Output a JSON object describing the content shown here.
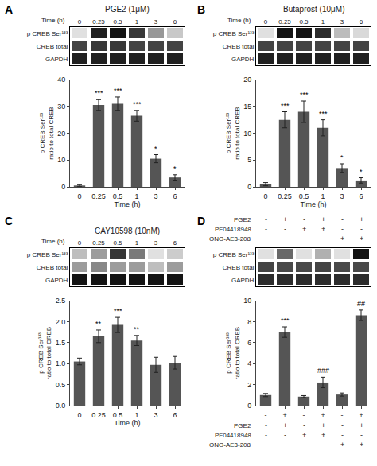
{
  "chart_data": [
    {
      "type": "heatmap",
      "label": "A",
      "title": "PGE2 (1μM)",
      "xlabel": "Time (h)",
      "categories": [
        "0",
        "0.25",
        "0.5",
        "1",
        "3",
        "6"
      ],
      "rows": [
        "p CREB Ser¹³³",
        "CREB total",
        "GAPDH"
      ],
      "cells": [
        [
          0.05,
          0.85,
          0.9,
          0.75,
          0.35,
          0.15
        ],
        [
          0.7,
          0.75,
          0.75,
          0.7,
          0.7,
          0.7
        ],
        [
          0.85,
          0.85,
          0.85,
          0.85,
          0.85,
          0.85
        ]
      ],
      "color": "#e0e0e0"
    },
    {
      "type": "bar",
      "categories": [
        "0",
        "0.25",
        "0.5",
        "1",
        "3",
        "6"
      ],
      "values": [
        0.5,
        30.5,
        31.0,
        26.5,
        10.5,
        3.5
      ],
      "errors": [
        0.3,
        2.0,
        2.5,
        2.0,
        1.5,
        1.0
      ],
      "annotations": [
        null,
        "***",
        "***",
        "***",
        "*",
        "*"
      ],
      "ylim": [
        0,
        40
      ],
      "yticks": [
        0,
        10,
        20,
        30,
        40
      ],
      "ylabel": "p CREB Ser¹³³\nratio to total CREB",
      "xlabel": "Time (h)",
      "color": "#555555",
      "grid": false
    },
    {
      "type": "heatmap",
      "label": "B",
      "title": "Butaprost (10μM)",
      "xlabel": "Time (h)",
      "categories": [
        "0",
        "0.25",
        "0.5",
        "1",
        "3",
        "6"
      ],
      "rows": [
        "p CREB Ser¹³³",
        "CREB total",
        "GAPDH"
      ],
      "cells": [
        [
          0.05,
          0.9,
          0.9,
          0.8,
          0.2,
          0.08
        ],
        [
          0.7,
          0.7,
          0.7,
          0.7,
          0.7,
          0.7
        ],
        [
          0.85,
          0.85,
          0.85,
          0.85,
          0.85,
          0.85
        ]
      ],
      "color": "#e0e0e0"
    },
    {
      "type": "bar",
      "categories": [
        "0",
        "0.25",
        "0.5",
        "1",
        "3",
        "6"
      ],
      "values": [
        0.5,
        12.5,
        14.0,
        11.0,
        3.5,
        1.2
      ],
      "errors": [
        0.3,
        1.5,
        2.0,
        1.5,
        0.8,
        0.5
      ],
      "annotations": [
        null,
        "***",
        "***",
        "***",
        "*",
        "*"
      ],
      "ylim": [
        0,
        20
      ],
      "yticks": [
        0,
        5,
        10,
        15,
        20
      ],
      "ylabel": "p CREB Ser¹³³\nratio to total CREB",
      "xlabel": "Time (h)",
      "color": "#555555",
      "grid": false
    },
    {
      "type": "heatmap",
      "label": "C",
      "title": "CAY10598 (10nM)",
      "xlabel": "Time (h)",
      "categories": [
        "0",
        "0.25",
        "0.5",
        "1",
        "3",
        "6"
      ],
      "rows": [
        "p CREB Ser¹³³",
        "CREB total",
        "GAPDH"
      ],
      "cells": [
        [
          0.6,
          0.65,
          0.8,
          0.7,
          0.55,
          0.58
        ],
        [
          0.65,
          0.68,
          0.65,
          0.65,
          0.6,
          0.65
        ],
        [
          0.85,
          0.85,
          0.85,
          0.85,
          0.85,
          0.85
        ]
      ],
      "color": "#e0e0e0"
    },
    {
      "type": "bar",
      "categories": [
        "0",
        "0.25",
        "0.5",
        "1",
        "3",
        "6"
      ],
      "values": [
        1.05,
        1.65,
        1.92,
        1.55,
        0.97,
        1.02
      ],
      "errors": [
        0.08,
        0.15,
        0.18,
        0.12,
        0.18,
        0.15
      ],
      "annotations": [
        null,
        "**",
        "***",
        "**",
        null,
        null
      ],
      "ylim": [
        0,
        2.5
      ],
      "yticks": [
        {
          "value": 0,
          "label": "0.0"
        },
        0.5,
        {
          "value": 1.0,
          "label": "1.0"
        },
        1.5,
        {
          "value": 2.0,
          "label": "2.0"
        },
        2.5
      ],
      "ylabel": "p CREB Ser¹³³\nratio to total CREB",
      "xlabel": "Time (h)",
      "color": "#555555",
      "grid": false
    },
    {
      "type": "heatmap",
      "label": "D",
      "conditions": [
        {
          "name": "PGE2",
          "values": [
            "-",
            "+",
            "-",
            "+",
            "-",
            "+"
          ]
        },
        {
          "name": "PF04418948",
          "values": [
            "-",
            "-",
            "+",
            "+",
            "-",
            "-"
          ]
        },
        {
          "name": "ONO-AE3-208",
          "values": [
            "-",
            "-",
            "-",
            "-",
            "+",
            "+"
          ]
        }
      ],
      "rows": [
        "p CREB Ser¹³³",
        "CREB total",
        "GAPDH"
      ],
      "cells": [
        [
          0.05,
          0.55,
          0.05,
          0.25,
          0.05,
          0.9
        ],
        [
          0.7,
          0.68,
          0.68,
          0.7,
          0.68,
          0.68
        ],
        [
          0.8,
          0.8,
          0.8,
          0.8,
          0.8,
          0.8
        ]
      ],
      "color": "#e0e0e0"
    },
    {
      "type": "bar",
      "categories": [
        "-",
        "+",
        "-",
        "+",
        "-",
        "+"
      ],
      "values": [
        1.0,
        7.0,
        0.85,
        2.2,
        1.05,
        8.6
      ],
      "errors": [
        0.15,
        0.5,
        0.1,
        0.5,
        0.15,
        0.5
      ],
      "annotations": [
        null,
        "***",
        null,
        "###",
        null,
        "##"
      ],
      "ylim": [
        0,
        10
      ],
      "yticks": [
        0,
        2,
        4,
        6,
        8,
        10
      ],
      "ylabel": "p CREB Ser¹³³\nratio to total CREB",
      "conditions": [
        {
          "name": "PGE2",
          "values": [
            "-",
            "+",
            "-",
            "+",
            "-",
            "+"
          ]
        },
        {
          "name": "PF04418948",
          "values": [
            "-",
            "-",
            "+",
            "+",
            "-",
            "-"
          ]
        },
        {
          "name": "ONO-AE3-208",
          "values": [
            "-",
            "-",
            "-",
            "-",
            "+",
            "+"
          ]
        }
      ],
      "color": "#555555",
      "grid": false
    }
  ]
}
